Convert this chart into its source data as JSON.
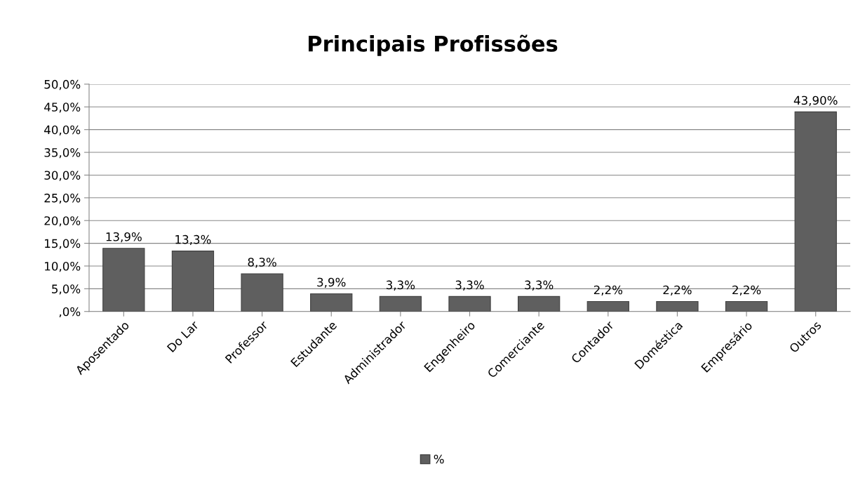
{
  "chart_data": {
    "type": "bar",
    "title": "Principais Profissões",
    "categories": [
      "Aposentado",
      "Do Lar",
      "Professor",
      "Estudante",
      "Administrador",
      "Engenheiro",
      "Comerciante",
      "Contador",
      "Doméstica",
      "Empresário",
      "Outros"
    ],
    "series": [
      {
        "name": "%",
        "color": "#5f5f5f",
        "values": [
          13.9,
          13.3,
          8.3,
          3.9,
          3.3,
          3.3,
          3.3,
          2.2,
          2.2,
          2.2,
          43.9
        ],
        "value_labels": [
          "13,9%",
          "13,3%",
          "8,3%",
          "3,9%",
          "3,3%",
          "3,3%",
          "3,3%",
          "2,2%",
          "2,2%",
          "2,2%",
          "43,90%"
        ]
      }
    ],
    "ylim": [
      0,
      50
    ],
    "yticks": [
      {
        "value": 0,
        "label": ",0%"
      },
      {
        "value": 5,
        "label": "5,0%"
      },
      {
        "value": 10,
        "label": "10,0%"
      },
      {
        "value": 15,
        "label": "15,0%"
      },
      {
        "value": 20,
        "label": "20,0%"
      },
      {
        "value": 25,
        "label": "25,0%"
      },
      {
        "value": 30,
        "label": "30,0%"
      },
      {
        "value": 35,
        "label": "35,0%"
      },
      {
        "value": 40,
        "label": "40,0%"
      },
      {
        "value": 45,
        "label": "45,0%"
      },
      {
        "value": 50,
        "label": "50,0%"
      }
    ],
    "grid": "y",
    "legend": "bottom"
  }
}
